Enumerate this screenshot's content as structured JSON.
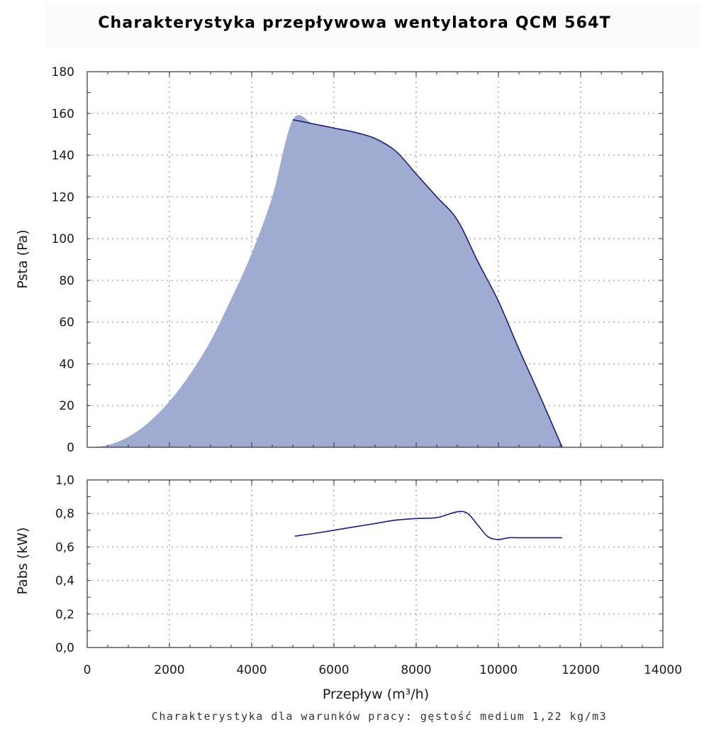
{
  "title": "Charakterystyka przepływowa wentylatora QCM 564T",
  "footnote": "Charakterystyka dla warunków pracy: gęstość medium 1,22 kg/m3",
  "colors": {
    "fill": "#9fabd0",
    "line": "#1a1f7a",
    "grid": "#bdbdbd",
    "axis": "#333333"
  },
  "chart_data": [
    {
      "type": "area",
      "ylabel": "Psta (Pa)",
      "xlim": [
        0,
        14000
      ],
      "ylim": [
        0,
        180
      ],
      "xticks": [
        0,
        2000,
        4000,
        6000,
        8000,
        10000,
        12000,
        14000
      ],
      "yticks": [
        0,
        20,
        40,
        60,
        80,
        100,
        120,
        140,
        160,
        180
      ],
      "ytick_labels": [
        "0",
        "20",
        "40",
        "60",
        "80",
        "100",
        "120",
        "140",
        "160",
        "180"
      ],
      "grid": true,
      "series": [
        {
          "x": [
            0,
            500,
            1000,
            1500,
            2000,
            2500,
            3000,
            3500,
            4000,
            4500,
            5000,
            5500,
            6000,
            6500,
            7000,
            7500,
            8000,
            8500,
            9000,
            9500,
            10000,
            10500,
            11000,
            11550
          ],
          "y": [
            0,
            1,
            5,
            12,
            22,
            35,
            51,
            71,
            93,
            120,
            157,
            155,
            153,
            151,
            148,
            142,
            131,
            120,
            109,
            89,
            70,
            47,
            25,
            0
          ]
        }
      ]
    },
    {
      "type": "line",
      "ylabel": "Pabs (kW)",
      "xlabel": "Przepływ (m³/h)",
      "xlim": [
        0,
        14000
      ],
      "ylim": [
        0,
        1.0
      ],
      "xticks": [
        0,
        2000,
        4000,
        6000,
        8000,
        10000,
        12000,
        14000
      ],
      "xtick_labels": [
        "0",
        "2000",
        "4000",
        "6000",
        "8000",
        "10000",
        "12000",
        "14000"
      ],
      "yticks": [
        0,
        0.2,
        0.4,
        0.6,
        0.8,
        1.0
      ],
      "ytick_labels": [
        "0,0",
        "0,2",
        "0,4",
        "0,6",
        "0,8",
        "1,0"
      ],
      "grid": true,
      "series": [
        {
          "x": [
            5050,
            5500,
            6000,
            6500,
            7000,
            7500,
            8000,
            8500,
            9000,
            9250,
            9500,
            9750,
            10000,
            10250,
            10500,
            11000,
            11550
          ],
          "y": [
            0.665,
            0.68,
            0.7,
            0.72,
            0.74,
            0.76,
            0.77,
            0.775,
            0.81,
            0.8,
            0.73,
            0.66,
            0.645,
            0.655,
            0.655,
            0.655,
            0.655
          ]
        }
      ]
    }
  ]
}
